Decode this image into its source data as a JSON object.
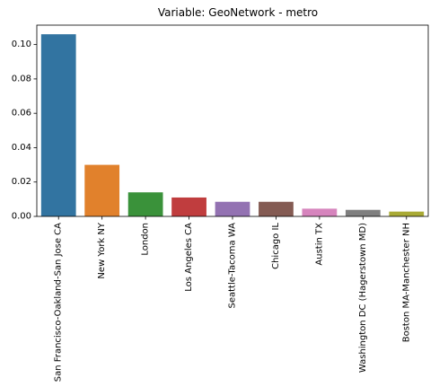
{
  "chart_data": {
    "type": "bar",
    "title": "Variable: GeoNetwork - metro",
    "xlabel": "",
    "ylabel": "",
    "categories": [
      "San Francisco-Oakland-San Jose CA",
      "New York NY",
      "London",
      "Los Angeles CA",
      "Seattle-Tacoma WA",
      "Chicago IL",
      "Austin TX",
      "Washington DC (Hagerstown MD)",
      "Boston MA-Manchester NH"
    ],
    "values": [
      0.106,
      0.03,
      0.014,
      0.011,
      0.0085,
      0.0085,
      0.0045,
      0.0038,
      0.0028
    ],
    "colors": [
      "#3274a1",
      "#e1812c",
      "#3a923a",
      "#c03d3e",
      "#9372b2",
      "#845b53",
      "#d684bd",
      "#7f7f7f",
      "#a9aa35"
    ],
    "ylim": [
      0,
      0.1113
    ],
    "yticks": [
      0.0,
      0.02,
      0.04,
      0.06,
      0.08,
      0.1
    ],
    "ytick_labels": [
      "0.00",
      "0.02",
      "0.04",
      "0.06",
      "0.08",
      "0.10"
    ],
    "grid": false,
    "legend": "none"
  }
}
